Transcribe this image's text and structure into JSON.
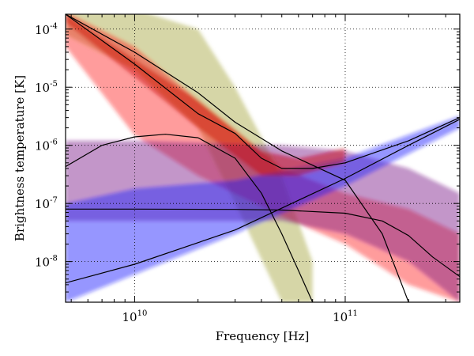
{
  "chart_data": {
    "type": "line",
    "xlabel": "Frequency [Hz]",
    "ylabel": "Brightness temperature [K]",
    "xscale": "log",
    "yscale": "log",
    "xlim": [
      4700000000.0,
      350000000000.0
    ],
    "ylim": [
      2e-09,
      0.00018
    ],
    "grid": true,
    "x_ticks": [
      {
        "value": 10000000000.0,
        "base": "10",
        "exp": "10"
      },
      {
        "value": 100000000000.0,
        "base": "10",
        "exp": "11"
      }
    ],
    "y_ticks": [
      {
        "value": 1e-08,
        "base": "10",
        "exp": "-8"
      },
      {
        "value": 1e-07,
        "base": "10",
        "exp": "-7"
      },
      {
        "value": 1e-06,
        "base": "10",
        "exp": "-6"
      },
      {
        "value": 1e-05,
        "base": "10",
        "exp": "-5"
      },
      {
        "value": 0.0001,
        "base": "10",
        "exp": "-4"
      }
    ],
    "bands": [
      {
        "color": "#a3a33a",
        "points": [
          [
            4700000000.0,
            8e-05,
            0.0004
          ],
          [
            10000000000.0,
            2e-05,
            0.00022
          ],
          [
            20000000000.0,
            2e-06,
            0.0001
          ],
          [
            30000000000.0,
            1e-07,
            1e-05
          ],
          [
            50000000000.0,
            2e-09,
            3e-07
          ],
          [
            70000000000.0,
            2e-09,
            1e-08
          ]
        ]
      },
      {
        "color": "#ff2020",
        "points": [
          [
            4700000000.0,
            5e-05,
            0.0002
          ],
          [
            10000000000.0,
            1.5e-06,
            5e-05
          ],
          [
            20000000000.0,
            3e-07,
            6e-06
          ],
          [
            50000000000.0,
            6e-08,
            4e-07
          ],
          [
            100000000000.0,
            2e-08,
            1.5e-07
          ],
          [
            200000000000.0,
            4e-09,
            8e-08
          ],
          [
            350000000000.0,
            2e-09,
            3e-08
          ]
        ]
      },
      {
        "color": "#7b1a88",
        "points": [
          [
            4700000000.0,
            5e-08,
            1.2e-06
          ],
          [
            10000000000.0,
            5e-08,
            1.2e-06
          ],
          [
            50000000000.0,
            5e-08,
            1e-06
          ],
          [
            100000000000.0,
            3e-08,
            8e-07
          ],
          [
            200000000000.0,
            1e-08,
            4e-07
          ],
          [
            350000000000.0,
            2e-09,
            1.5e-07
          ]
        ]
      },
      {
        "color": "#1a1aff",
        "points": [
          [
            4700000000.0,
            2e-09,
            1e-07
          ],
          [
            10000000000.0,
            6e-09,
            1.8e-07
          ],
          [
            30000000000.0,
            3e-08,
            2.5e-07
          ],
          [
            100000000000.0,
            2e-07,
            6e-07
          ],
          [
            350000000000.0,
            2e-06,
            3.2e-06
          ]
        ]
      },
      {
        "color": "#c80000",
        "points": [
          [
            4700000000.0,
            0.00013,
            0.00018
          ],
          [
            10000000000.0,
            1.5e-05,
            3e-05
          ],
          [
            20000000000.0,
            2e-06,
            6e-06
          ],
          [
            40000000000.0,
            3e-07,
            8e-07
          ],
          [
            60000000000.0,
            3e-07,
            6e-07
          ],
          [
            100000000000.0,
            5e-07,
            9e-07
          ]
        ]
      }
    ],
    "series": [
      {
        "points": [
          [
            4700000000.0,
            4.3e-07
          ],
          [
            7000000000.0,
            1e-06
          ],
          [
            10000000000.0,
            1.4e-06
          ],
          [
            14000000000.0,
            1.55e-06
          ],
          [
            20000000000.0,
            1.35e-06
          ],
          [
            30000000000.0,
            6e-07
          ],
          [
            40000000000.0,
            1.5e-07
          ],
          [
            50000000000.0,
            3e-08
          ],
          [
            60000000000.0,
            7e-09
          ],
          [
            70000000000.0,
            2e-09
          ]
        ]
      },
      {
        "points": [
          [
            4700000000.0,
            8e-08
          ],
          [
            10000000000.0,
            8e-08
          ],
          [
            30000000000.0,
            7.9e-08
          ],
          [
            50000000000.0,
            7.7e-08
          ],
          [
            100000000000.0,
            6.8e-08
          ],
          [
            150000000000.0,
            5e-08
          ],
          [
            200000000000.0,
            2.8e-08
          ],
          [
            260000000000.0,
            1.2e-08
          ],
          [
            350000000000.0,
            5.5e-09
          ]
        ]
      },
      {
        "points": [
          [
            4700000000.0,
            4.3e-09
          ],
          [
            10000000000.0,
            9e-09
          ],
          [
            30000000000.0,
            3.5e-08
          ],
          [
            100000000000.0,
            2.7e-07
          ],
          [
            200000000000.0,
            1e-06
          ],
          [
            350000000000.0,
            2.8e-06
          ]
        ]
      },
      {
        "points": [
          [
            4700000000.0,
            0.00018
          ],
          [
            10000000000.0,
            4e-05
          ],
          [
            20000000000.0,
            8e-06
          ],
          [
            30000000000.0,
            2.5e-06
          ],
          [
            50000000000.0,
            8e-07
          ],
          [
            100000000000.0,
            2.5e-07
          ],
          [
            150000000000.0,
            3e-08
          ],
          [
            200000000000.0,
            2e-09
          ]
        ]
      },
      {
        "points": [
          [
            4700000000.0,
            0.00018
          ],
          [
            10000000000.0,
            2.5e-05
          ],
          [
            20000000000.0,
            3.5e-06
          ],
          [
            30000000000.0,
            1.6e-06
          ],
          [
            40000000000.0,
            6e-07
          ],
          [
            50000000000.0,
            4e-07
          ],
          [
            70000000000.0,
            4e-07
          ],
          [
            100000000000.0,
            5e-07
          ],
          [
            200000000000.0,
            1.2e-06
          ],
          [
            350000000000.0,
            3e-06
          ]
        ]
      }
    ]
  }
}
